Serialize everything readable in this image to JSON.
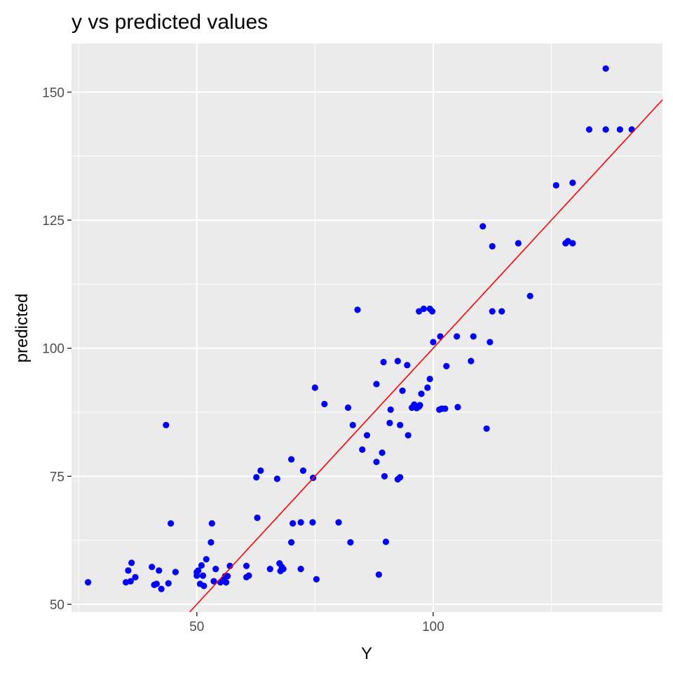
{
  "chart_data": {
    "type": "scatter",
    "title": "y vs predicted values",
    "xlabel": "Y",
    "ylabel": "predicted",
    "xlim": [
      23.5,
      148.5
    ],
    "ylim": [
      48.5,
      159.5
    ],
    "x_ticks": [
      50,
      100
    ],
    "x_tick_labels": [
      "50",
      "100"
    ],
    "x_minor_ticks": [
      25,
      75,
      125
    ],
    "y_ticks": [
      50,
      75,
      100,
      125,
      150
    ],
    "y_tick_labels": [
      "50",
      "75",
      "100",
      "125",
      "150"
    ],
    "y_minor_ticks": [
      62.5,
      87.5,
      112.5,
      137.5
    ],
    "grid": true,
    "legend": "none",
    "colors": {
      "panel": "#ebebeb",
      "grid": "#ffffff",
      "point": "#0000ff",
      "reference_line": "#ff0000",
      "tick_label": "#4d4d4d",
      "title": "#000000"
    },
    "reference_line": {
      "slope": 1,
      "intercept": 0
    },
    "points": [
      [
        27,
        54.3
      ],
      [
        35,
        54.3
      ],
      [
        35.5,
        56.6
      ],
      [
        36,
        54.5
      ],
      [
        36.2,
        58.1
      ],
      [
        37,
        55.3
      ],
      [
        40.5,
        57.3
      ],
      [
        41,
        53.8
      ],
      [
        41.5,
        54
      ],
      [
        42,
        56.6
      ],
      [
        42.5,
        53
      ],
      [
        43.5,
        85
      ],
      [
        44,
        54.1
      ],
      [
        44.5,
        65.8
      ],
      [
        45.5,
        56.3
      ],
      [
        50,
        56.3
      ],
      [
        50,
        55.6
      ],
      [
        50.3,
        56.6
      ],
      [
        50.7,
        54
      ],
      [
        51,
        57.6
      ],
      [
        51.3,
        55.6
      ],
      [
        51.5,
        53.6
      ],
      [
        52,
        58.8
      ],
      [
        53,
        62.1
      ],
      [
        53.2,
        65.8
      ],
      [
        53.6,
        54.5
      ],
      [
        54,
        56.9
      ],
      [
        55,
        54.3
      ],
      [
        55.5,
        54.7
      ],
      [
        56,
        55.5
      ],
      [
        56.2,
        54.3
      ],
      [
        56.5,
        55.5
      ],
      [
        57,
        57.5
      ],
      [
        60.5,
        57.5
      ],
      [
        60.5,
        55.3
      ],
      [
        61,
        55.6
      ],
      [
        62.6,
        74.8
      ],
      [
        62.8,
        66.9
      ],
      [
        63.5,
        76.1
      ],
      [
        65.5,
        56.9
      ],
      [
        67,
        74.5
      ],
      [
        67.5,
        58
      ],
      [
        67.7,
        56.5
      ],
      [
        68,
        57.3
      ],
      [
        68.3,
        56.9
      ],
      [
        70,
        78.3
      ],
      [
        70,
        62.1
      ],
      [
        70.3,
        65.8
      ],
      [
        72,
        66
      ],
      [
        72,
        56.9
      ],
      [
        72.5,
        76.1
      ],
      [
        74.5,
        66
      ],
      [
        74.6,
        74.7
      ],
      [
        75,
        92.3
      ],
      [
        75.3,
        54.9
      ],
      [
        77,
        89.1
      ],
      [
        80,
        66
      ],
      [
        82,
        88.4
      ],
      [
        82.5,
        62.1
      ],
      [
        83,
        85
      ],
      [
        84,
        107.5
      ],
      [
        85,
        80.2
      ],
      [
        86,
        83
      ],
      [
        88,
        77.8
      ],
      [
        88,
        93
      ],
      [
        88.5,
        55.8
      ],
      [
        89.2,
        79.6
      ],
      [
        89.5,
        97.3
      ],
      [
        89.7,
        75
      ],
      [
        90,
        62.2
      ],
      [
        90.8,
        85.4
      ],
      [
        91,
        88
      ],
      [
        92.5,
        97.5
      ],
      [
        92.5,
        74.4
      ],
      [
        93,
        74.8
      ],
      [
        93,
        85
      ],
      [
        93.5,
        91.7
      ],
      [
        94.5,
        96.7
      ],
      [
        94.7,
        83
      ],
      [
        95.5,
        88.4
      ],
      [
        96,
        89
      ],
      [
        96.5,
        88.3
      ],
      [
        97,
        88.6
      ],
      [
        97,
        107.2
      ],
      [
        97.2,
        88.9
      ],
      [
        97.5,
        91.1
      ],
      [
        98,
        107.7
      ],
      [
        98.8,
        92.3
      ],
      [
        99.3,
        94
      ],
      [
        99.3,
        107.7
      ],
      [
        99.8,
        107.2
      ],
      [
        100,
        101.2
      ],
      [
        101.3,
        88
      ],
      [
        101.5,
        102.3
      ],
      [
        101.8,
        88.2
      ],
      [
        102.5,
        88.2
      ],
      [
        102.8,
        96.5
      ],
      [
        105,
        102.3
      ],
      [
        105.2,
        88.5
      ],
      [
        108,
        97.5
      ],
      [
        108.5,
        102.3
      ],
      [
        110.5,
        123.8
      ],
      [
        111.3,
        84.3
      ],
      [
        112,
        101.2
      ],
      [
        112.5,
        119.9
      ],
      [
        112.5,
        107.2
      ],
      [
        114.5,
        107.2
      ],
      [
        118,
        120.5
      ],
      [
        120.5,
        110.2
      ],
      [
        126,
        131.8
      ],
      [
        128,
        120.5
      ],
      [
        128.5,
        120.9
      ],
      [
        129.5,
        132.3
      ],
      [
        129.5,
        120.5
      ],
      [
        133,
        142.7
      ],
      [
        136.5,
        154.6
      ],
      [
        136.5,
        142.7
      ],
      [
        139.5,
        142.7
      ],
      [
        142,
        142.7
      ]
    ]
  }
}
